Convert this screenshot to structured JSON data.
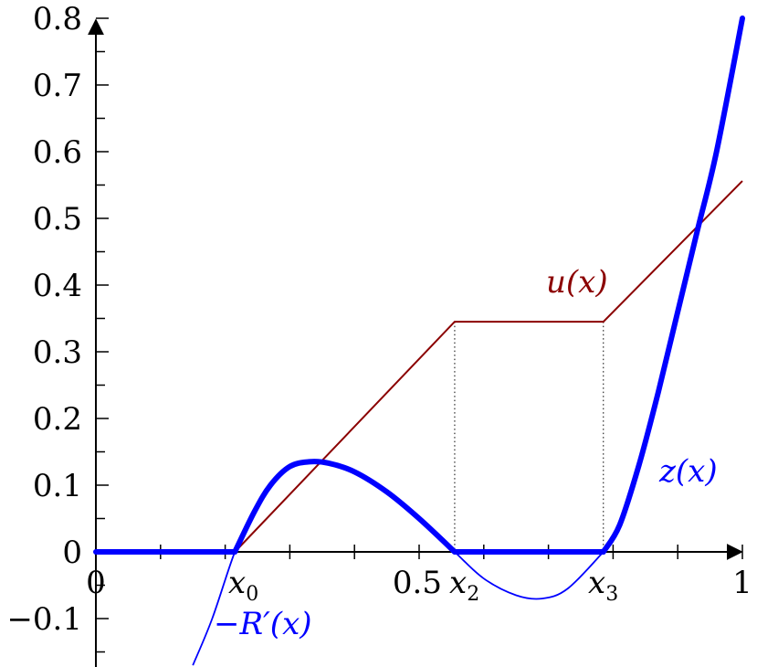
{
  "chart_data": {
    "type": "line",
    "title": "",
    "xlabel": "",
    "ylabel": "",
    "xlim": [
      0,
      1
    ],
    "ylim": [
      -0.17,
      0.8
    ],
    "grid": false,
    "legend": "none",
    "x_ticks": [
      {
        "value": 0,
        "label": "0"
      },
      {
        "value": 0.5,
        "label": "0.5"
      },
      {
        "value": 1,
        "label": "1"
      }
    ],
    "y_ticks": [
      {
        "value": -0.1,
        "label": "−0.1"
      },
      {
        "value": 0,
        "label": "0"
      },
      {
        "value": 0.1,
        "label": "0.1"
      },
      {
        "value": 0.2,
        "label": "0.2"
      },
      {
        "value": 0.3,
        "label": "0.3"
      },
      {
        "value": 0.4,
        "label": "0.4"
      },
      {
        "value": 0.5,
        "label": "0.5"
      },
      {
        "value": 0.6,
        "label": "0.6"
      },
      {
        "value": 0.7,
        "label": "0.7"
      },
      {
        "value": 0.8,
        "label": "0.8"
      }
    ],
    "x_markers": [
      {
        "name": "x0",
        "value": 0.215,
        "label": "x",
        "sub": "0"
      },
      {
        "name": "x2",
        "value": 0.555,
        "label": "x",
        "sub": "2"
      },
      {
        "name": "x3",
        "value": 0.785,
        "label": "x",
        "sub": "3"
      }
    ],
    "series": [
      {
        "name": "u(x)",
        "label": "u(x)",
        "color": "#8b0000",
        "points": [
          [
            0.215,
            0
          ],
          [
            0.555,
            0.345
          ],
          [
            0.785,
            0.345
          ],
          [
            1.0,
            0.556
          ]
        ]
      },
      {
        "name": "z(x)",
        "label": "z(x)",
        "color": "#0000ff",
        "points": [
          [
            0.0,
            0
          ],
          [
            0.215,
            0
          ],
          [
            0.245,
            0.06
          ],
          [
            0.27,
            0.1
          ],
          [
            0.3,
            0.128
          ],
          [
            0.33,
            0.135
          ],
          [
            0.36,
            0.133
          ],
          [
            0.4,
            0.12
          ],
          [
            0.45,
            0.09
          ],
          [
            0.5,
            0.05
          ],
          [
            0.555,
            0
          ],
          [
            0.785,
            0
          ],
          [
            0.81,
            0.04
          ],
          [
            0.84,
            0.13
          ],
          [
            0.87,
            0.24
          ],
          [
            0.9,
            0.36
          ],
          [
            0.93,
            0.48
          ],
          [
            0.96,
            0.6
          ],
          [
            1.0,
            0.8
          ]
        ]
      },
      {
        "name": "-R'(x)",
        "label": "−R′(x)",
        "color": "#0000ff",
        "points": [
          [
            0.15,
            -0.17
          ],
          [
            0.18,
            -0.1
          ],
          [
            0.215,
            0
          ],
          [
            0.245,
            0.06
          ],
          [
            0.27,
            0.1
          ],
          [
            0.3,
            0.128
          ],
          [
            0.33,
            0.135
          ],
          [
            0.36,
            0.133
          ],
          [
            0.4,
            0.12
          ],
          [
            0.45,
            0.09
          ],
          [
            0.5,
            0.05
          ],
          [
            0.555,
            0
          ],
          [
            0.6,
            -0.04
          ],
          [
            0.65,
            -0.065
          ],
          [
            0.69,
            -0.07
          ],
          [
            0.73,
            -0.055
          ],
          [
            0.785,
            0
          ]
        ]
      }
    ],
    "dotted_guides": [
      {
        "x": 0.555,
        "y": 0.345
      },
      {
        "x": 0.785,
        "y": 0.345
      }
    ]
  }
}
